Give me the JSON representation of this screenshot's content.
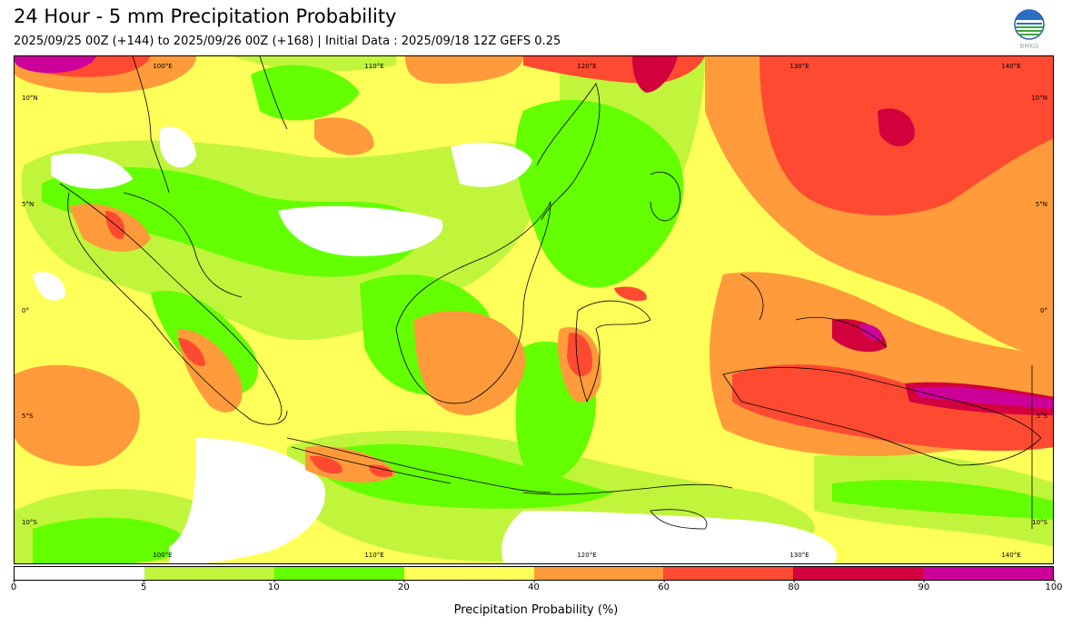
{
  "title": "24 Hour - 5 mm Precipitation Probability",
  "subtitle": "2025/09/25 00Z (+144) to 2025/09/26 00Z (+168) | Initial Data : 2025/09/18 12Z GEFS 0.25",
  "logo": {
    "icon": "bmkg-logo",
    "text": "BMKG"
  },
  "map": {
    "longitude_labels": [
      "100°E",
      "110°E",
      "120°E",
      "130°E",
      "140°E"
    ],
    "latitude_labels": [
      "10°N",
      "5°N",
      "0°",
      "5°S",
      "10°S"
    ]
  },
  "colorbar": {
    "label": "Precipitation Probability (%)",
    "ticks": [
      "0",
      "5",
      "10",
      "20",
      "40",
      "60",
      "80",
      "90",
      "100"
    ],
    "colors": [
      "#ffffff",
      "#c0f53c",
      "#64ff00",
      "#ffff5a",
      "#ff9b3a",
      "#ff4a32",
      "#d2003c",
      "#cc0099"
    ]
  }
}
